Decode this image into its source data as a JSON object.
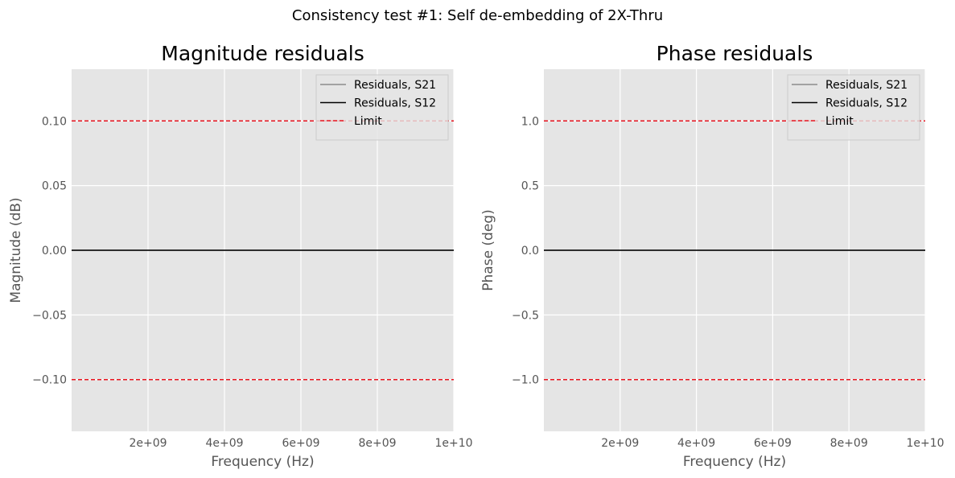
{
  "figure": {
    "suptitle": "Consistency test #1: Self de-embedding of 2X-Thru"
  },
  "colors": {
    "plot_background": "#e5e5e5",
    "grid": "#ffffff",
    "tick_text": "#555555",
    "s21_line": "#8c8c8c",
    "s12_line": "#000000",
    "limit_line": "#e8141e"
  },
  "chart_data": [
    {
      "type": "line",
      "title": "Magnitude residuals",
      "xlabel": "Frequency (Hz)",
      "ylabel": "Magnitude (dB)",
      "xlim": [
        0,
        10000000000
      ],
      "ylim": [
        -0.14,
        0.14
      ],
      "x_ticks": [
        2000000000,
        4000000000,
        6000000000,
        8000000000,
        10000000000
      ],
      "x_tick_labels": [
        "2e+09",
        "4e+09",
        "6e+09",
        "8e+09",
        "1e+10"
      ],
      "y_ticks": [
        -0.1,
        -0.05,
        0.0,
        0.05,
        0.1
      ],
      "y_tick_labels": [
        "−0.10",
        "−0.05",
        "0.00",
        "0.05",
        "0.10"
      ],
      "grid": true,
      "legend_position": "top-right",
      "series": [
        {
          "name": "Residuals, S21",
          "style": "solid",
          "color": "#8c8c8c",
          "x": [
            0,
            10000000000
          ],
          "values": [
            0,
            0
          ]
        },
        {
          "name": "Residuals, S12",
          "style": "solid",
          "color": "#000000",
          "x": [
            0,
            10000000000
          ],
          "values": [
            0,
            0
          ]
        }
      ],
      "limits": {
        "name": "Limit",
        "style": "dashed",
        "color": "#e8141e",
        "values": [
          0.1,
          -0.1
        ]
      }
    },
    {
      "type": "line",
      "title": "Phase residuals",
      "xlabel": "Frequency (Hz)",
      "ylabel": "Phase (deg)",
      "xlim": [
        0,
        10000000000
      ],
      "ylim": [
        -1.4,
        1.4
      ],
      "x_ticks": [
        2000000000,
        4000000000,
        6000000000,
        8000000000,
        10000000000
      ],
      "x_tick_labels": [
        "2e+09",
        "4e+09",
        "6e+09",
        "8e+09",
        "1e+10"
      ],
      "y_ticks": [
        -1.0,
        -0.5,
        0.0,
        0.5,
        1.0
      ],
      "y_tick_labels": [
        "−1.0",
        "−0.5",
        "0.0",
        "0.5",
        "1.0"
      ],
      "grid": true,
      "legend_position": "top-right",
      "series": [
        {
          "name": "Residuals, S21",
          "style": "solid",
          "color": "#8c8c8c",
          "x": [
            0,
            10000000000
          ],
          "values": [
            0,
            0
          ]
        },
        {
          "name": "Residuals, S12",
          "style": "solid",
          "color": "#000000",
          "x": [
            0,
            10000000000
          ],
          "values": [
            0,
            0
          ]
        }
      ],
      "limits": {
        "name": "Limit",
        "style": "dashed",
        "color": "#e8141e",
        "values": [
          1.0,
          -1.0
        ]
      }
    }
  ]
}
